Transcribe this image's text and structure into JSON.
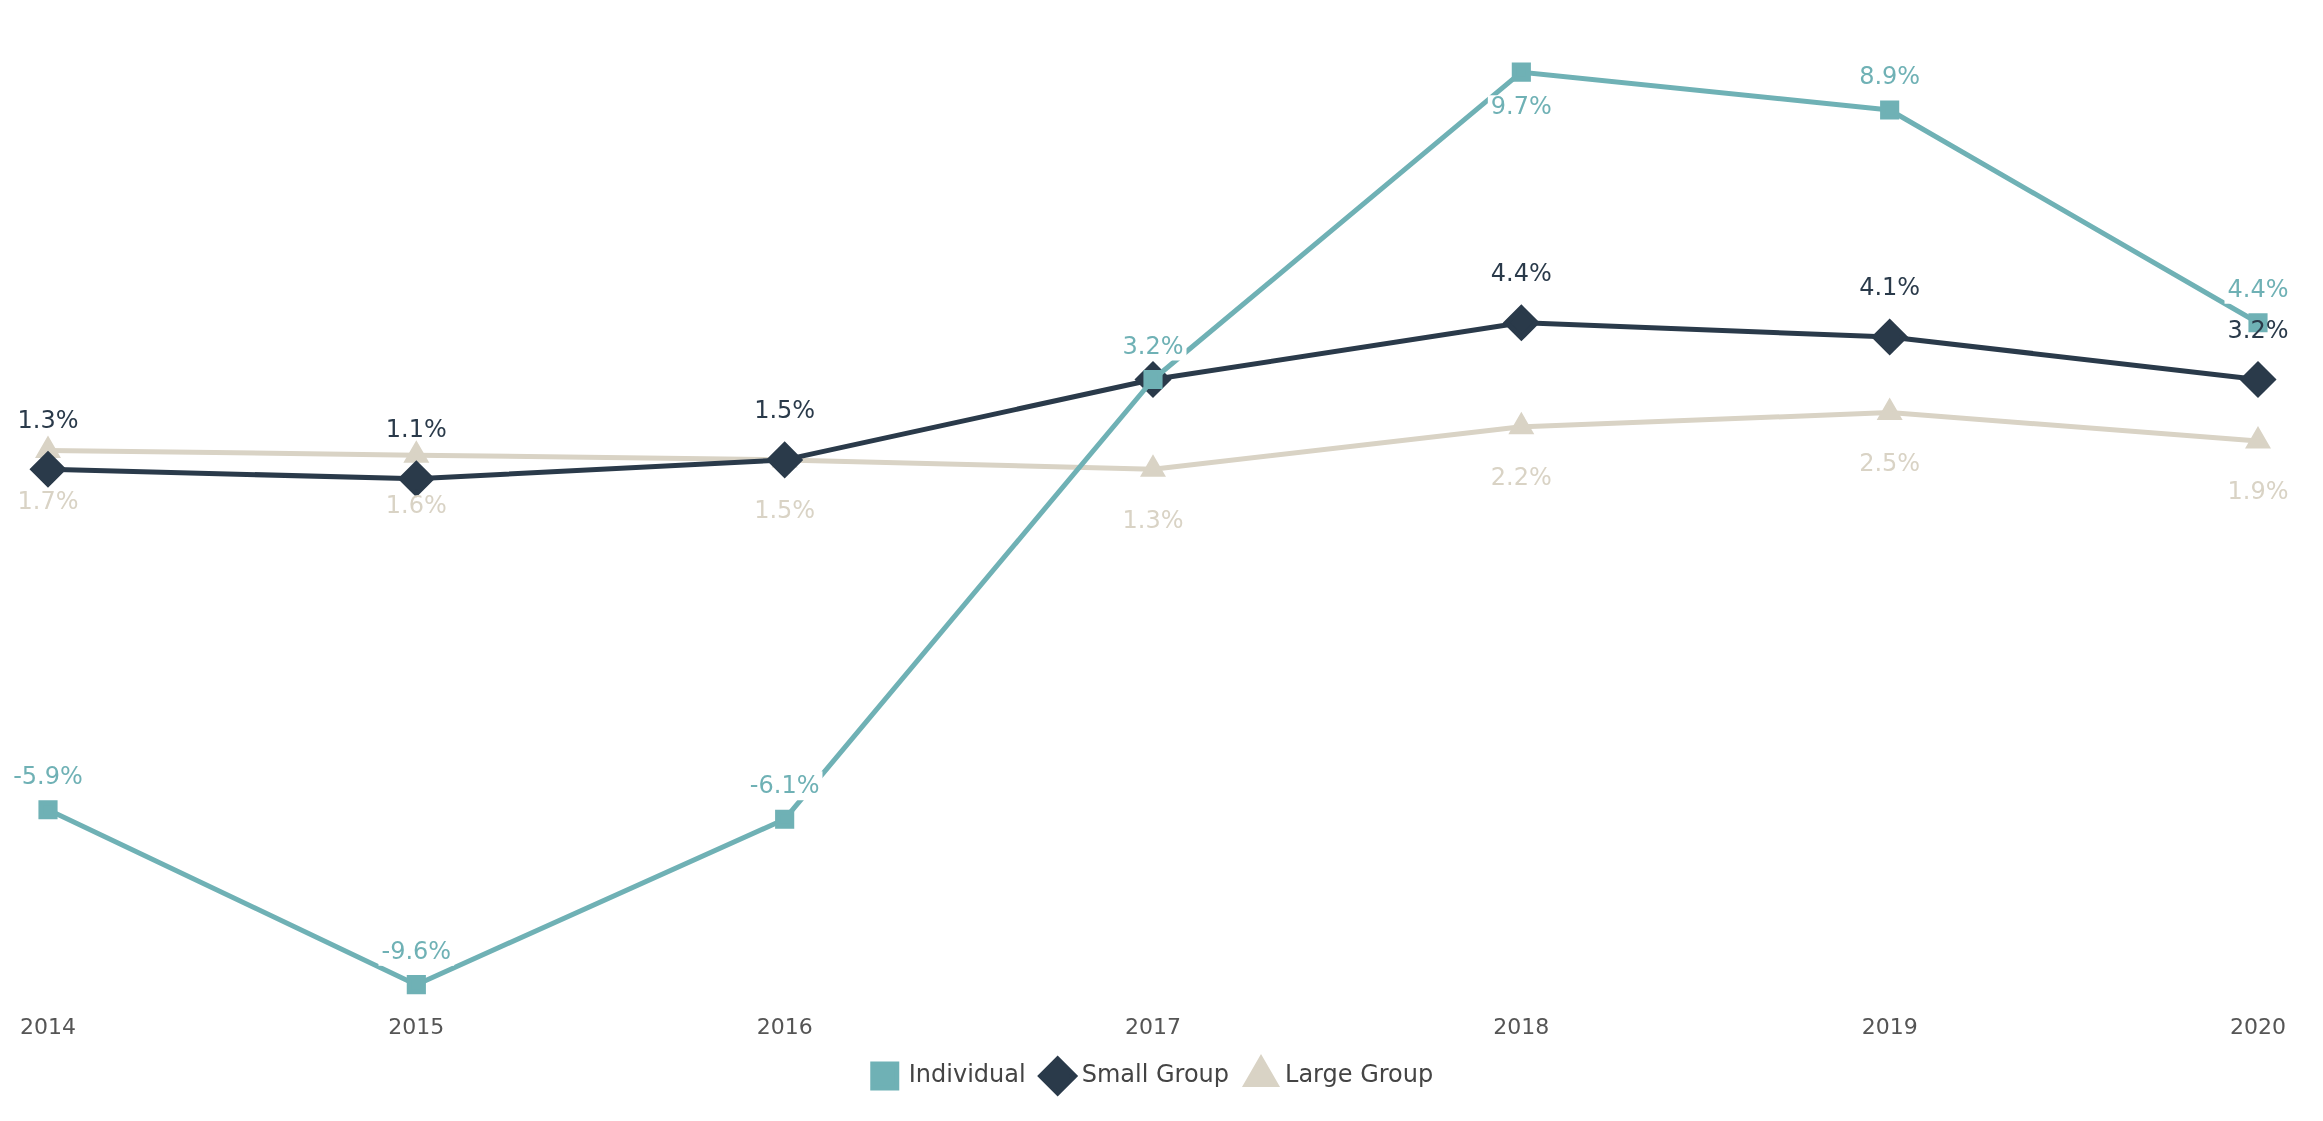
{
  "chart_data": {
    "type": "line",
    "categories": [
      "2014",
      "2015",
      "2016",
      "2017",
      "2018",
      "2019",
      "2020"
    ],
    "series": [
      {
        "name": "Individual",
        "color": "#6fb1b5",
        "marker": "square",
        "values": [
          -5.9,
          -9.6,
          -6.1,
          3.2,
          9.7,
          8.9,
          4.4
        ],
        "value_labels": [
          "-5.9%",
          "-9.6%",
          "-6.1%",
          "3.2%",
          "9.7%",
          "8.9%",
          "4.4%"
        ]
      },
      {
        "name": "Small Group",
        "color": "#2a3a4a",
        "marker": "diamond",
        "values": [
          1.3,
          1.1,
          1.5,
          3.2,
          4.4,
          4.1,
          3.2
        ],
        "value_labels": [
          "1.3%",
          "1.1%",
          "1.5%",
          null,
          "4.4%",
          "4.1%",
          "3.2%"
        ]
      },
      {
        "name": "Large Group",
        "color": "#d9d3c5",
        "marker": "triangle",
        "values": [
          1.7,
          1.6,
          1.5,
          1.3,
          2.2,
          2.5,
          1.9
        ],
        "value_labels": [
          "1.7%",
          "1.6%",
          "1.5%",
          "1.3%",
          "2.2%",
          "2.5%",
          "1.9%"
        ]
      }
    ],
    "legend": "bottom",
    "grid": false
  }
}
